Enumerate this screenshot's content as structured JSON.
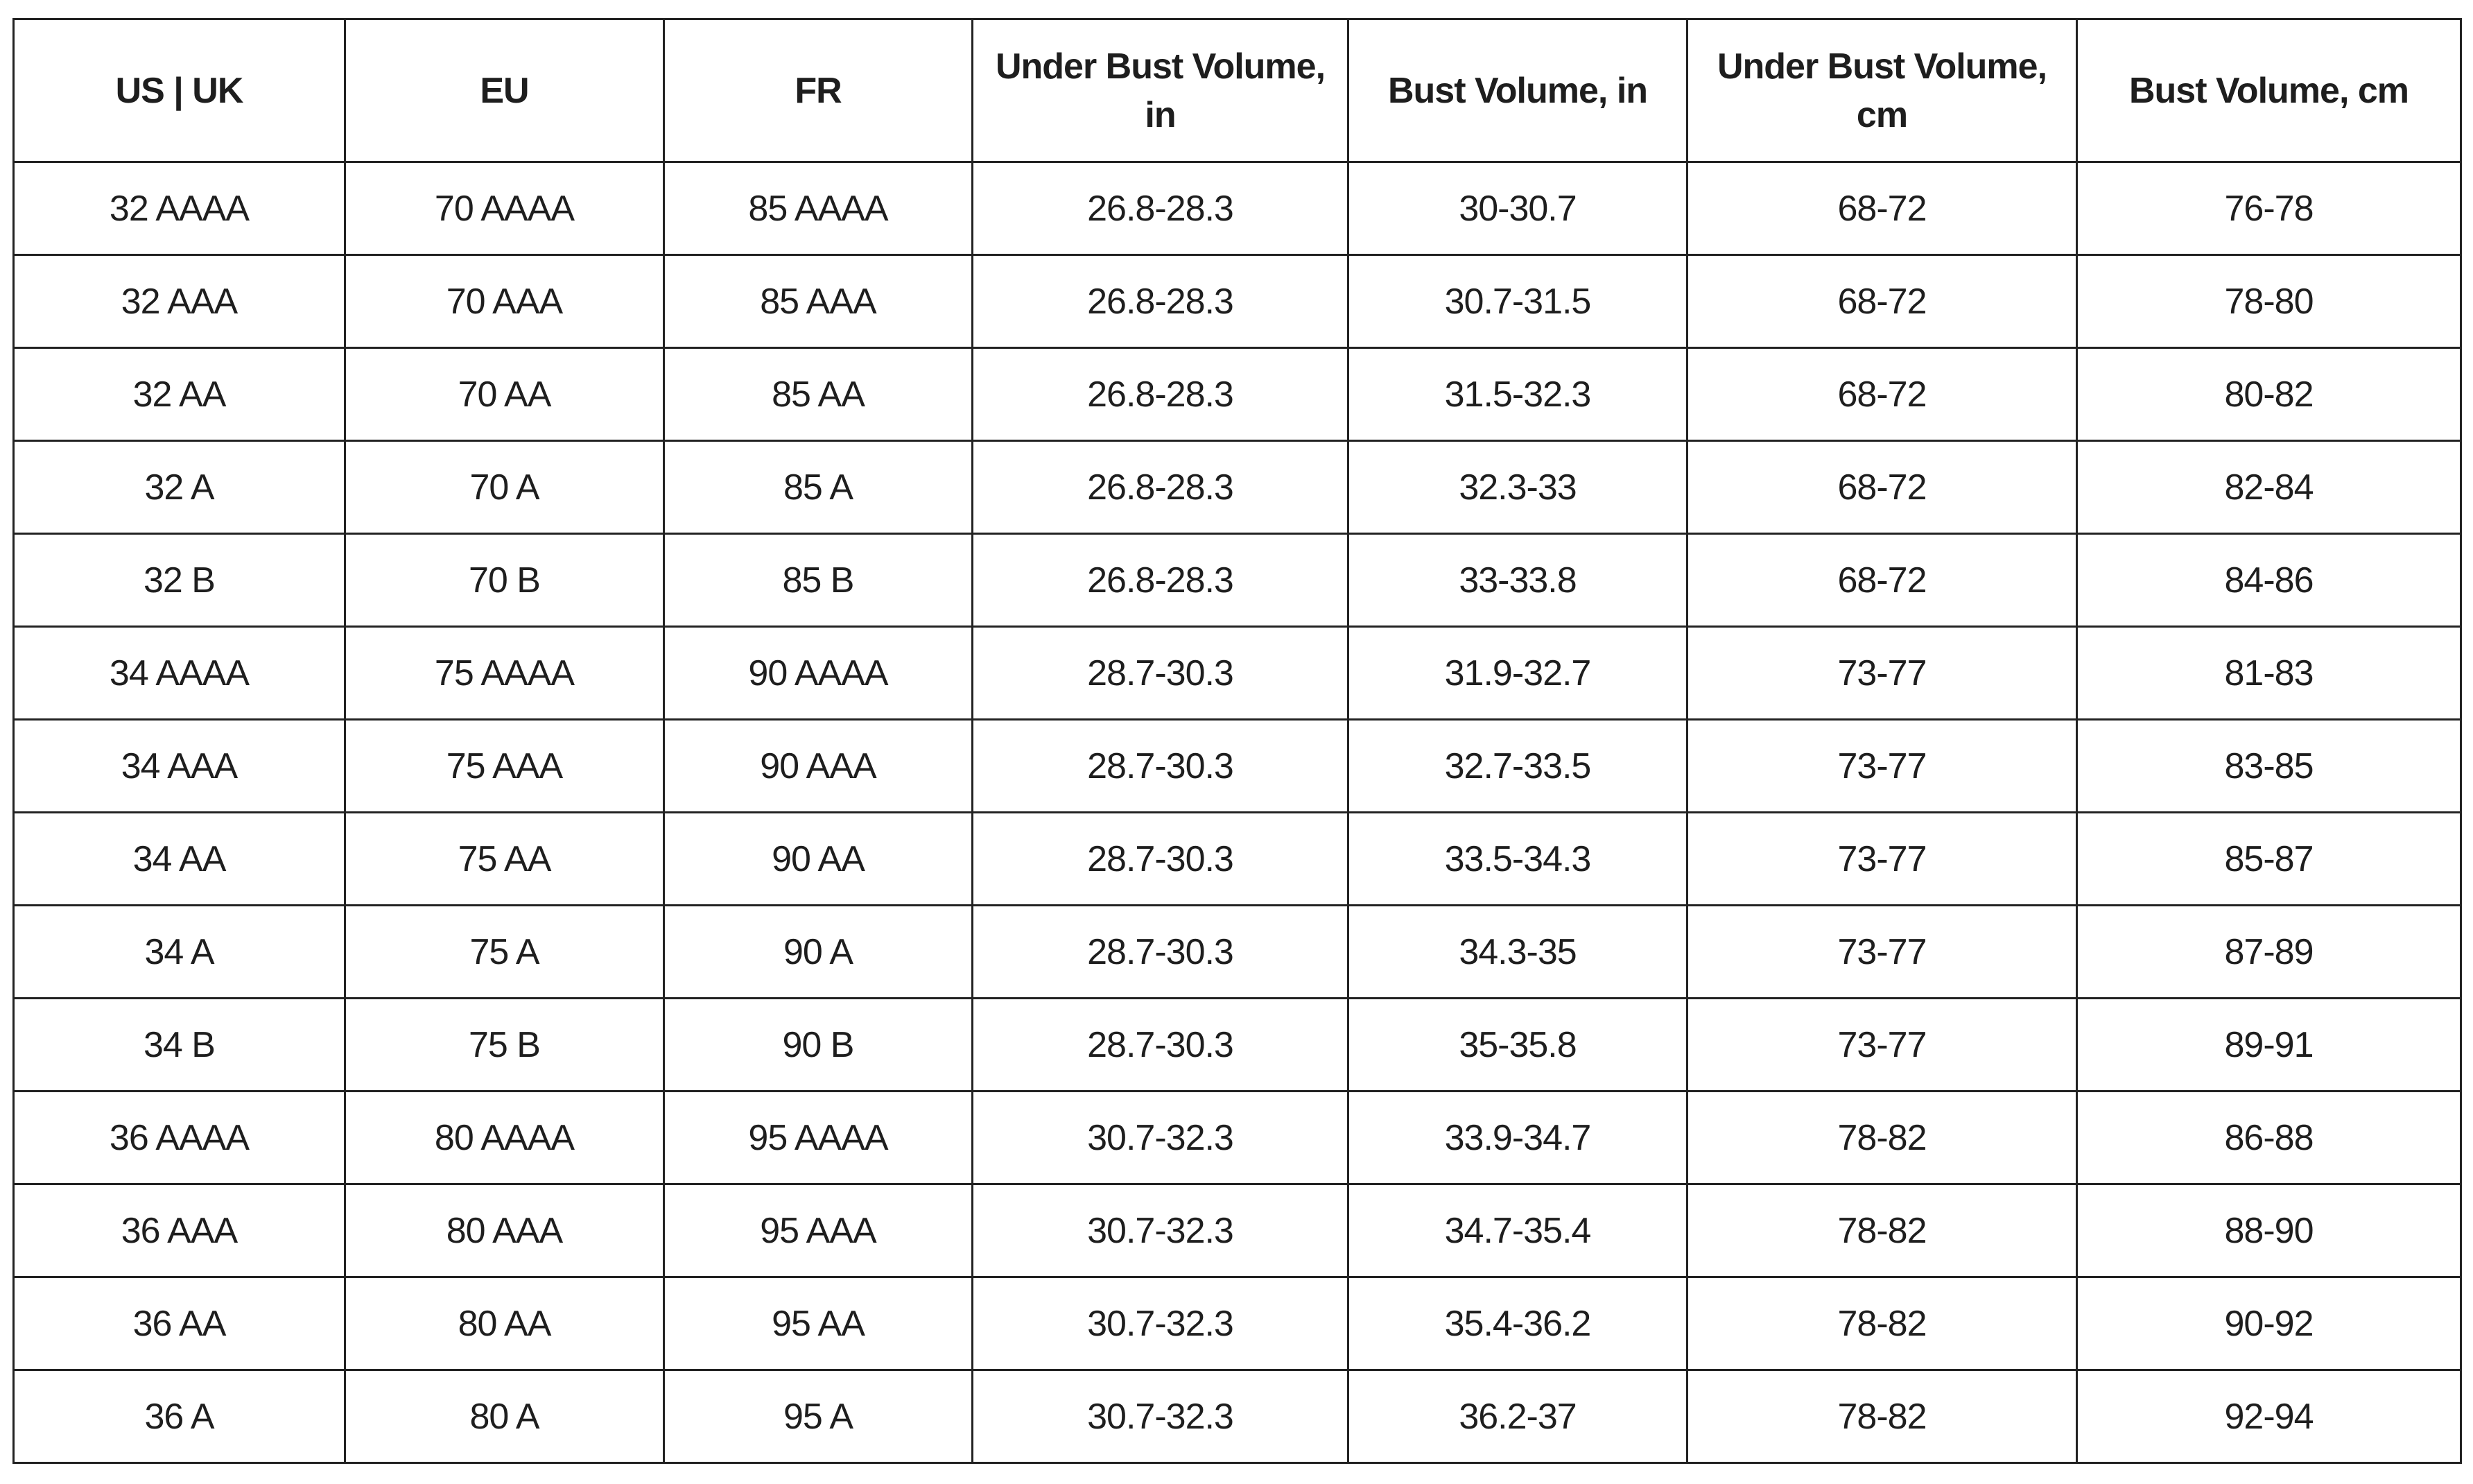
{
  "table": {
    "headers": [
      "US | UK",
      "EU",
      "FR",
      "Under Bust Volume, in",
      "Bust Volume, in",
      "Under Bust Volume, cm",
      "Bust Volume, cm"
    ],
    "rows": [
      [
        "32 AAAA",
        "70 AAAA",
        "85 AAAA",
        "26.8-28.3",
        "30-30.7",
        "68-72",
        "76-78"
      ],
      [
        "32 AAA",
        "70 AAA",
        "85 AAA",
        "26.8-28.3",
        "30.7-31.5",
        "68-72",
        "78-80"
      ],
      [
        "32 AA",
        "70 AA",
        "85 AA",
        "26.8-28.3",
        "31.5-32.3",
        "68-72",
        "80-82"
      ],
      [
        "32 A",
        "70 A",
        "85 A",
        "26.8-28.3",
        "32.3-33",
        "68-72",
        "82-84"
      ],
      [
        "32 B",
        "70 B",
        "85 B",
        "26.8-28.3",
        "33-33.8",
        "68-72",
        "84-86"
      ],
      [
        "34 AAAA",
        "75 AAAA",
        "90 AAAA",
        "28.7-30.3",
        "31.9-32.7",
        "73-77",
        "81-83"
      ],
      [
        "34 AAA",
        "75 AAA",
        "90 AAA",
        "28.7-30.3",
        "32.7-33.5",
        "73-77",
        "83-85"
      ],
      [
        "34 AA",
        "75 AA",
        "90 AA",
        "28.7-30.3",
        "33.5-34.3",
        "73-77",
        "85-87"
      ],
      [
        "34 A",
        "75 A",
        "90 A",
        "28.7-30.3",
        "34.3-35",
        "73-77",
        "87-89"
      ],
      [
        "34 B",
        "75 B",
        "90 B",
        "28.7-30.3",
        "35-35.8",
        "73-77",
        "89-91"
      ],
      [
        "36 AAAA",
        "80 AAAA",
        "95 AAAA",
        "30.7-32.3",
        "33.9-34.7",
        "78-82",
        "86-88"
      ],
      [
        "36 AAA",
        "80 AAA",
        "95 AAA",
        "30.7-32.3",
        "34.7-35.4",
        "78-82",
        "88-90"
      ],
      [
        "36 AA",
        "80 AA",
        "95 AA",
        "30.7-32.3",
        "35.4-36.2",
        "78-82",
        "90-92"
      ],
      [
        "36 A",
        "80 A",
        "95 A",
        "30.7-32.3",
        "36.2-37",
        "78-82",
        "92-94"
      ]
    ]
  }
}
